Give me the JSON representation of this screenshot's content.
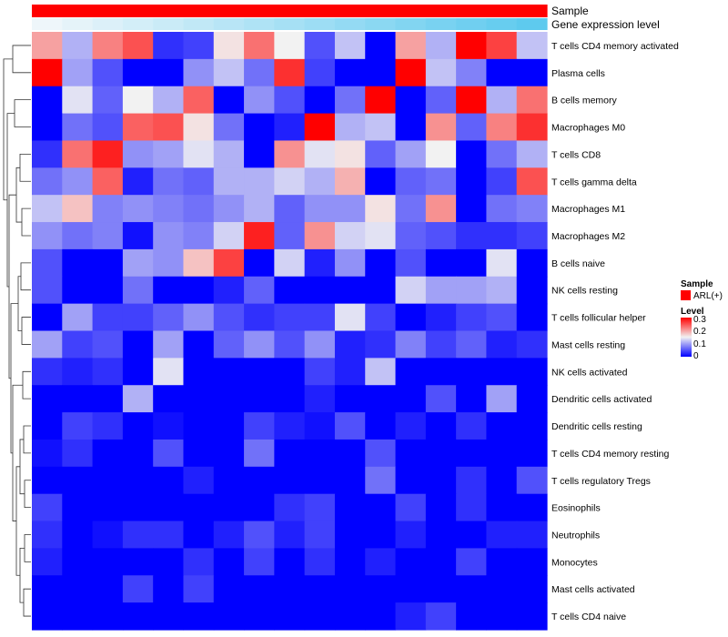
{
  "chart_data": {
    "type": "heatmap",
    "title": "",
    "annotation_rows": [
      {
        "name": "Sample",
        "legend_title": "Sample",
        "legend_entry": "ARL(+)",
        "color": "#ff0000"
      },
      {
        "name": "Gene expression level",
        "gradient": [
          "#eef6fa",
          "#58c8ee"
        ]
      }
    ],
    "row_labels": [
      "T cells CD4 memory activated",
      "Plasma cells",
      "B cells memory",
      "Macrophages M0",
      "T cells CD8",
      "T cells gamma delta",
      "Macrophages M1",
      "Macrophages M2",
      "B cells naive",
      "NK cells resting",
      "T cells follicular helper",
      "Mast cells resting",
      "NK cells activated",
      "Dendritic cells activated",
      "Dendritic cells resting",
      "T cells CD4 memory resting",
      "T cells regulatory  Tregs",
      "Eosinophils",
      "Neutrophils",
      "Monocytes",
      "Mast cells activated",
      "T cells CD4 naive"
    ],
    "n_columns": 17,
    "values": [
      [
        0.2,
        0.11,
        0.22,
        0.25,
        0.03,
        0.04,
        0.16,
        0.23,
        0.15,
        0.05,
        0.12,
        0.0,
        0.2,
        0.11,
        0.3,
        0.26,
        0.12
      ],
      [
        0.3,
        0.1,
        0.05,
        0.0,
        0.0,
        0.09,
        0.12,
        0.07,
        0.27,
        0.04,
        0.0,
        0.0,
        0.3,
        0.12,
        0.08,
        0.0,
        0.0
      ],
      [
        0.0,
        0.14,
        0.06,
        0.15,
        0.11,
        0.24,
        0.0,
        0.09,
        0.05,
        0.0,
        0.07,
        0.3,
        0.0,
        0.06,
        0.3,
        0.11,
        0.23
      ],
      [
        0.0,
        0.07,
        0.05,
        0.24,
        0.25,
        0.16,
        0.07,
        0.0,
        0.02,
        0.3,
        0.11,
        0.12,
        0.0,
        0.21,
        0.06,
        0.22,
        0.27
      ],
      [
        0.03,
        0.23,
        0.28,
        0.09,
        0.1,
        0.14,
        0.11,
        0.0,
        0.21,
        0.14,
        0.16,
        0.06,
        0.1,
        0.15,
        0.0,
        0.07,
        0.11
      ],
      [
        0.07,
        0.09,
        0.24,
        0.02,
        0.07,
        0.06,
        0.11,
        0.11,
        0.13,
        0.11,
        0.19,
        0.0,
        0.06,
        0.07,
        0.0,
        0.04,
        0.25
      ],
      [
        0.12,
        0.18,
        0.08,
        0.09,
        0.08,
        0.07,
        0.09,
        0.11,
        0.06,
        0.09,
        0.09,
        0.16,
        0.07,
        0.21,
        0.0,
        0.07,
        0.08
      ],
      [
        0.09,
        0.07,
        0.08,
        0.01,
        0.09,
        0.08,
        0.13,
        0.28,
        0.06,
        0.21,
        0.13,
        0.14,
        0.06,
        0.05,
        0.03,
        0.03,
        0.04
      ],
      [
        0.05,
        0.0,
        0.0,
        0.1,
        0.09,
        0.18,
        0.26,
        0.0,
        0.13,
        0.02,
        0.09,
        0.0,
        0.05,
        0.0,
        0.0,
        0.14,
        0.0
      ],
      [
        0.05,
        0.0,
        0.0,
        0.07,
        0.0,
        0.0,
        0.02,
        0.06,
        0.0,
        0.0,
        0.0,
        0.0,
        0.13,
        0.1,
        0.1,
        0.11,
        0.0
      ],
      [
        0.0,
        0.1,
        0.04,
        0.04,
        0.06,
        0.09,
        0.05,
        0.03,
        0.04,
        0.04,
        0.14,
        0.04,
        0.0,
        0.02,
        0.04,
        0.05,
        0.0
      ],
      [
        0.1,
        0.04,
        0.05,
        0.0,
        0.1,
        0.0,
        0.06,
        0.09,
        0.05,
        0.09,
        0.02,
        0.03,
        0.08,
        0.04,
        0.06,
        0.02,
        0.03
      ],
      [
        0.03,
        0.02,
        0.03,
        0.0,
        0.14,
        0.0,
        0.0,
        0.0,
        0.0,
        0.04,
        0.02,
        0.12,
        0.0,
        0.0,
        0.0,
        0.0,
        0.0
      ],
      [
        0.0,
        0.0,
        0.0,
        0.11,
        0.0,
        0.0,
        0.0,
        0.0,
        0.0,
        0.02,
        0.0,
        0.0,
        0.0,
        0.05,
        0.0,
        0.1,
        0.0
      ],
      [
        0.0,
        0.04,
        0.03,
        0.0,
        0.01,
        0.0,
        0.0,
        0.04,
        0.02,
        0.01,
        0.05,
        0.0,
        0.02,
        0.0,
        0.03,
        0.0,
        0.0
      ],
      [
        0.01,
        0.03,
        0.0,
        0.0,
        0.05,
        0.0,
        0.0,
        0.07,
        0.0,
        0.0,
        0.0,
        0.05,
        0.0,
        0.0,
        0.0,
        0.0,
        0.0
      ],
      [
        0.0,
        0.0,
        0.0,
        0.0,
        0.0,
        0.02,
        0.0,
        0.0,
        0.0,
        0.0,
        0.0,
        0.07,
        0.0,
        0.0,
        0.03,
        0.0,
        0.05
      ],
      [
        0.04,
        0.0,
        0.0,
        0.0,
        0.0,
        0.0,
        0.0,
        0.0,
        0.03,
        0.04,
        0.0,
        0.0,
        0.04,
        0.0,
        0.03,
        0.0,
        0.0
      ],
      [
        0.03,
        0.0,
        0.01,
        0.03,
        0.03,
        0.0,
        0.02,
        0.05,
        0.02,
        0.04,
        0.0,
        0.0,
        0.02,
        0.0,
        0.0,
        0.02,
        0.02
      ],
      [
        0.02,
        0.0,
        0.0,
        0.0,
        0.0,
        0.03,
        0.0,
        0.04,
        0.0,
        0.03,
        0.0,
        0.02,
        0.0,
        0.0,
        0.04,
        0.0,
        0.0
      ],
      [
        0.0,
        0.0,
        0.0,
        0.04,
        0.0,
        0.04,
        0.0,
        0.0,
        0.0,
        0.0,
        0.0,
        0.0,
        0.0,
        0.0,
        0.0,
        0.0,
        0.0
      ],
      [
        0.0,
        0.0,
        0.0,
        0.0,
        0.0,
        0.0,
        0.0,
        0.0,
        0.0,
        0.0,
        0.0,
        0.0,
        0.02,
        0.04,
        0.0,
        0.0,
        0.0
      ]
    ],
    "expression_level": [
      0.0,
      0.06,
      0.12,
      0.18,
      0.24,
      0.3,
      0.36,
      0.42,
      0.48,
      0.54,
      0.6,
      0.66,
      0.72,
      0.78,
      0.84,
      0.9,
      0.96
    ],
    "color_scale": {
      "min": 0,
      "mid": 0.15,
      "max": 0.3,
      "low": "#0000ff",
      "mid_color": "#f2f2f2",
      "high": "#ff0000"
    },
    "legend": {
      "sample_title": "Sample",
      "sample_entry": "ARL(+)",
      "level_title": "Level",
      "level_ticks": [
        "0.3",
        "0.2",
        "0.1",
        "0"
      ]
    },
    "dendrogram": "row",
    "legend_position": "right"
  }
}
